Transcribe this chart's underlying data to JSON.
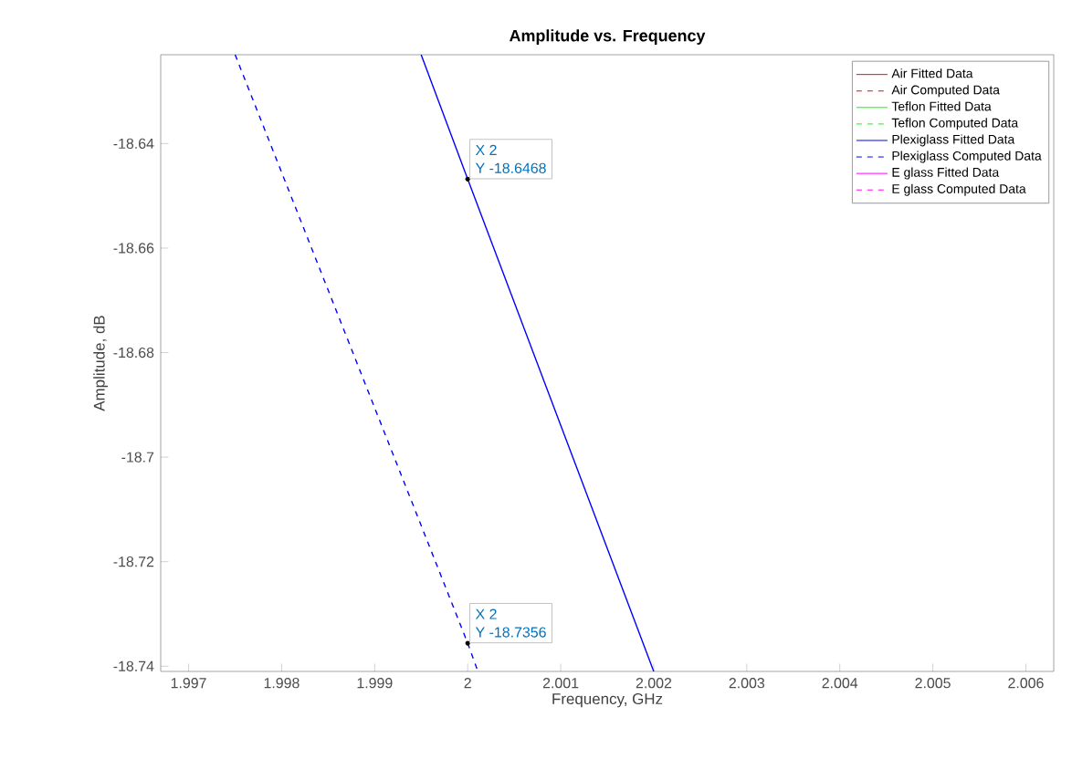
{
  "chart_data": {
    "type": "line",
    "title": "Amplitude vs. Frequency",
    "xlabel": "Frequency, GHz",
    "ylabel": "Amplitude, dB",
    "xlim": [
      1.9967,
      2.0063
    ],
    "ylim": [
      -18.741,
      -18.623
    ],
    "xticks": [
      1.997,
      1.998,
      1.999,
      2,
      2.001,
      2.002,
      2.003,
      2.004,
      2.005,
      2.006
    ],
    "yticks": [
      -18.74,
      -18.72,
      -18.7,
      -18.68,
      -18.66,
      -18.64
    ],
    "grid": false,
    "legend": "top right",
    "series": [
      {
        "name": "Air Fitted Data",
        "color": "#ff0000",
        "line_style": "solid"
      },
      {
        "name": "Air Computed Data",
        "color": "#ff0000",
        "line_style": "dashed"
      },
      {
        "name": "Teflon Fitted Data",
        "color": "#00ff00",
        "line_style": "solid"
      },
      {
        "name": "Teflon Computed Data",
        "color": "#00ff00",
        "line_style": "dashed"
      },
      {
        "name": "Plexiglass Fitted Data",
        "color": "#0000ff",
        "line_style": "solid",
        "x": [
          1.9995,
          2,
          2.002
        ],
        "values": [
          -18.623,
          -18.6468,
          -18.741
        ]
      },
      {
        "name": "Plexiglass Computed Data",
        "color": "#0000ff",
        "line_style": "dashed",
        "x": [
          1.9975,
          2,
          2.00011
        ],
        "values": [
          -18.623,
          -18.7356,
          -18.741
        ]
      },
      {
        "name": "E glass Fitted Data",
        "color": "#ff00ff",
        "line_style": "solid"
      },
      {
        "name": "E glass Computed Data",
        "color": "#ff00ff",
        "line_style": "dashed"
      }
    ],
    "annotations": [
      {
        "text": "X 2",
        "x": 2,
        "y": -18.6468
      },
      "Y -18.6468",
      {
        "text": "X 2",
        "x": 2,
        "y": -18.7356
      },
      "Y -18.7356"
    ]
  }
}
